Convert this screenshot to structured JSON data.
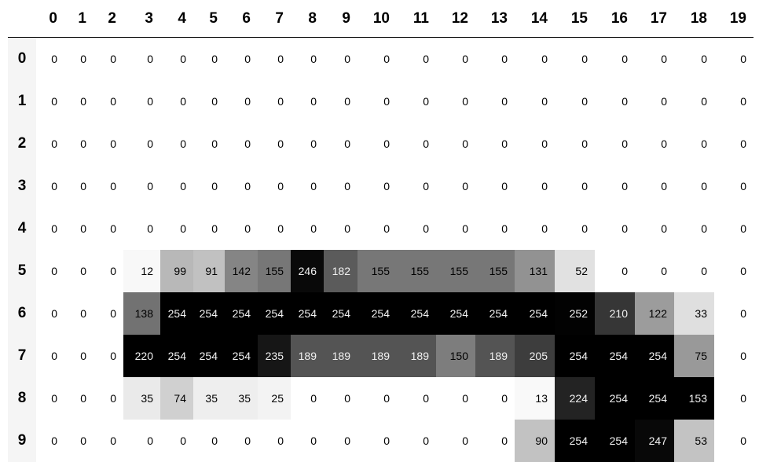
{
  "columns": [
    "0",
    "1",
    "2",
    "3",
    "4",
    "5",
    "6",
    "7",
    "8",
    "9",
    "10",
    "11",
    "12",
    "13",
    "14",
    "15",
    "16",
    "17",
    "18",
    "19"
  ],
  "index": [
    "0",
    "1",
    "2",
    "3",
    "4",
    "5",
    "6",
    "7",
    "8",
    "9"
  ],
  "colormap": "Greys",
  "gradient_axis": "columns",
  "values": [
    [
      0,
      0,
      0,
      0,
      0,
      0,
      0,
      0,
      0,
      0,
      0,
      0,
      0,
      0,
      0,
      0,
      0,
      0,
      0,
      0
    ],
    [
      0,
      0,
      0,
      0,
      0,
      0,
      0,
      0,
      0,
      0,
      0,
      0,
      0,
      0,
      0,
      0,
      0,
      0,
      0,
      0
    ],
    [
      0,
      0,
      0,
      0,
      0,
      0,
      0,
      0,
      0,
      0,
      0,
      0,
      0,
      0,
      0,
      0,
      0,
      0,
      0,
      0
    ],
    [
      0,
      0,
      0,
      0,
      0,
      0,
      0,
      0,
      0,
      0,
      0,
      0,
      0,
      0,
      0,
      0,
      0,
      0,
      0,
      0
    ],
    [
      0,
      0,
      0,
      0,
      0,
      0,
      0,
      0,
      0,
      0,
      0,
      0,
      0,
      0,
      0,
      0,
      0,
      0,
      0,
      0
    ],
    [
      0,
      0,
      0,
      12,
      99,
      91,
      142,
      155,
      246,
      182,
      155,
      155,
      155,
      155,
      131,
      52,
      0,
      0,
      0,
      0
    ],
    [
      0,
      0,
      0,
      138,
      254,
      254,
      254,
      254,
      254,
      254,
      254,
      254,
      254,
      254,
      254,
      252,
      210,
      122,
      33,
      0
    ],
    [
      0,
      0,
      0,
      220,
      254,
      254,
      254,
      235,
      189,
      189,
      189,
      189,
      150,
      189,
      205,
      254,
      254,
      254,
      75,
      0
    ],
    [
      0,
      0,
      0,
      35,
      74,
      35,
      35,
      25,
      0,
      0,
      0,
      0,
      0,
      0,
      13,
      224,
      254,
      254,
      153,
      0
    ],
    [
      0,
      0,
      0,
      0,
      0,
      0,
      0,
      0,
      0,
      0,
      0,
      0,
      0,
      0,
      90,
      254,
      254,
      247,
      53,
      0
    ]
  ]
}
